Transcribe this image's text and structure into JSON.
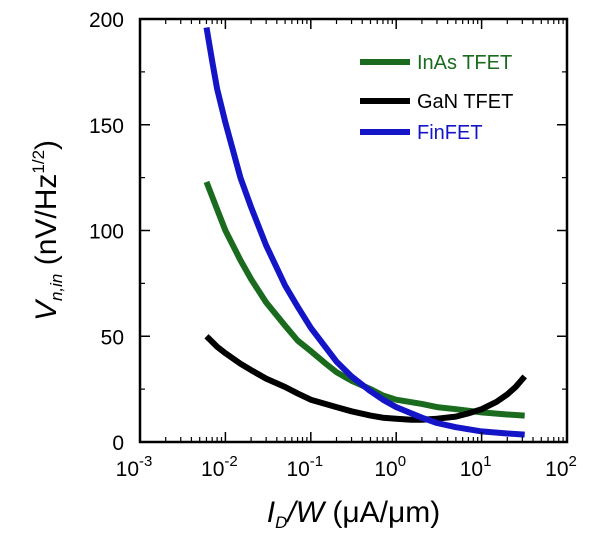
{
  "chart_data": {
    "type": "line",
    "x_scale": "log",
    "xlim": [
      0.001,
      100
    ],
    "ylim": [
      0,
      200
    ],
    "xticks": [
      {
        "value": 0.001,
        "base": "10",
        "exp": "-3"
      },
      {
        "value": 0.01,
        "base": "10",
        "exp": "-2"
      },
      {
        "value": 0.1,
        "base": "10",
        "exp": "-1"
      },
      {
        "value": 1,
        "base": "10",
        "exp": "0"
      },
      {
        "value": 10,
        "base": "10",
        "exp": "1"
      },
      {
        "value": 100,
        "base": "10",
        "exp": "2"
      }
    ],
    "yticks": [
      {
        "value": 0,
        "label": "0"
      },
      {
        "value": 50,
        "label": "50"
      },
      {
        "value": 100,
        "label": "100"
      },
      {
        "value": 150,
        "label": "150"
      },
      {
        "value": 200,
        "label": "200"
      }
    ],
    "xlabel": {
      "main": "I",
      "sub": "D",
      "rest": "/W",
      "unit": " (μA/μm)"
    },
    "ylabel": {
      "main": "V",
      "sub": "n,in",
      "unit_pre": " (nV/Hz",
      "sup": "1/2",
      "unit_post": ")"
    },
    "legend_position": "top-right",
    "grid": false,
    "series": [
      {
        "name": "InAs TFET",
        "color": "#1a6b1e",
        "x": [
          0.006,
          0.008,
          0.01,
          0.015,
          0.02,
          0.03,
          0.05,
          0.07,
          0.1,
          0.15,
          0.2,
          0.3,
          0.5,
          0.7,
          1,
          2,
          3,
          5,
          10,
          20,
          32
        ],
        "y": [
          123,
          110,
          100,
          86,
          77,
          66,
          55,
          48,
          43,
          37,
          33,
          29,
          25,
          22,
          20,
          18,
          16.5,
          15.5,
          14,
          13,
          12.5
        ]
      },
      {
        "name": "GaN TFET",
        "color": "#000000",
        "x": [
          0.006,
          0.008,
          0.01,
          0.015,
          0.02,
          0.03,
          0.05,
          0.07,
          0.1,
          0.2,
          0.3,
          0.5,
          0.7,
          1,
          1.5,
          2,
          3,
          5,
          7,
          10,
          15,
          20,
          25,
          32
        ],
        "y": [
          50,
          45,
          42,
          37,
          34,
          30,
          26,
          23,
          20,
          16.5,
          14.5,
          12.5,
          11.5,
          11,
          10.5,
          10.5,
          11,
          12,
          13.5,
          15.5,
          19,
          22.5,
          26,
          31
        ]
      },
      {
        "name": "FinFET",
        "color": "#1515c8",
        "x": [
          0.006,
          0.007,
          0.008,
          0.01,
          0.015,
          0.02,
          0.03,
          0.05,
          0.07,
          0.1,
          0.2,
          0.3,
          0.5,
          0.7,
          1,
          2,
          3,
          5,
          10,
          20,
          32
        ],
        "y": [
          196,
          180,
          167,
          151,
          125,
          111,
          93,
          74,
          64,
          54,
          38,
          31,
          24,
          20,
          16.5,
          11.5,
          9,
          7,
          5,
          4,
          3.5
        ]
      }
    ]
  }
}
